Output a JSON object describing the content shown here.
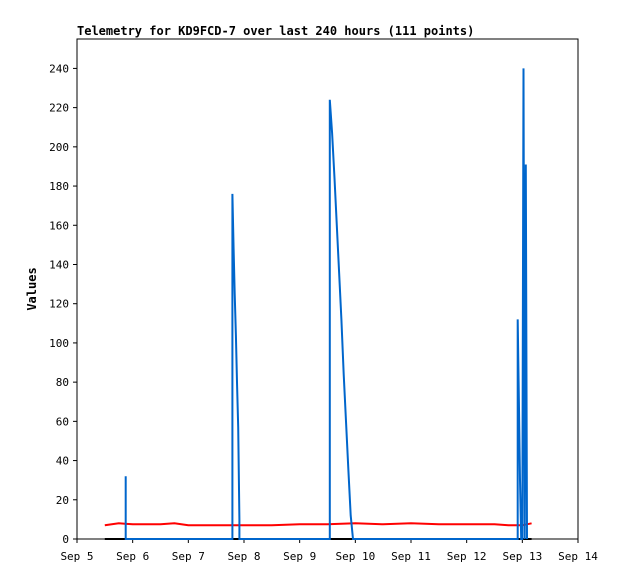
{
  "chart_data": {
    "type": "line",
    "title": "Telemetry for KD9FCD-7 over last 240 hours (111 points)",
    "ylabel": "Values",
    "xlabel": "",
    "x_ticks": [
      "Sep 5",
      "Sep 6",
      "Sep 7",
      "Sep 8",
      "Sep 9",
      "Sep 10",
      "Sep 11",
      "Sep 12",
      "Sep 13",
      "Sep 14"
    ],
    "xlim": [
      "Sep 5",
      "Sep 14"
    ],
    "y_ticks": [
      0,
      20,
      40,
      60,
      80,
      100,
      120,
      140,
      160,
      180,
      200,
      220,
      240
    ],
    "ylim": [
      0,
      255
    ],
    "grid": false,
    "legend": "none",
    "series": [
      {
        "color": "#ff0000",
        "x": [
          "Sep 5 12:00",
          "Sep 5 18:00",
          "Sep 6 00:00",
          "Sep 6 12:00",
          "Sep 6 18:00",
          "Sep 7 00:00",
          "Sep 7 12:00",
          "Sep 8 00:00",
          "Sep 8 12:00",
          "Sep 9 00:00",
          "Sep 9 12:00",
          "Sep 10 00:00",
          "Sep 10 12:00",
          "Sep 11 00:00",
          "Sep 11 12:00",
          "Sep 12 00:00",
          "Sep 12 06:00",
          "Sep 12 12:00",
          "Sep 12 18:00",
          "Sep 13 00:00",
          "Sep 13 04:00"
        ],
        "y": [
          7,
          8,
          7.5,
          7.5,
          8,
          7,
          7,
          7,
          7,
          7.5,
          7.5,
          8,
          7.5,
          8,
          7.5,
          7.5,
          7.5,
          7.5,
          7,
          7,
          8
        ]
      },
      {
        "color": "#000000",
        "x": [
          "Sep 5 12:00",
          "Sep 13 04:00"
        ],
        "y": [
          0,
          0
        ]
      },
      {
        "color": "#0066cc",
        "x": [
          "Sep 5 21:00",
          "Sep 5 21:00",
          "Sep 5 21:00",
          "Sep 7 19:00",
          "Sep 7 19:00",
          "Sep 7 19:30",
          "Sep 7 20:00",
          "Sep 7 20:30",
          "Sep 7 21:00",
          "Sep 7 21:30",
          "Sep 7 22:00",
          "Sep 7 22:00",
          "Sep 9 13:00",
          "Sep 9 13:00",
          "Sep 9 14:00",
          "Sep 9 15:00",
          "Sep 9 16:00",
          "Sep 9 17:00",
          "Sep 9 18:00",
          "Sep 9 19:00",
          "Sep 9 20:00",
          "Sep 9 21:00",
          "Sep 9 22:00",
          "Sep 9 23:00",
          "Sep 10 00:00",
          "Sep 10 00:00",
          "Sep 12 22:00",
          "Sep 12 22:00",
          "Sep 12 22:30",
          "Sep 12 23:00",
          "Sep 12 23:30",
          "Sep 13 00:00",
          "Sep 13 00:30",
          "Sep 13 01:00",
          "Sep 13 01:30",
          "Sep 13 02:00",
          "Sep 13 02:00"
        ],
        "y": [
          0,
          32,
          0,
          0,
          176,
          148,
          125,
          104,
          80,
          57,
          10,
          0,
          0,
          224,
          207,
          184,
          160,
          136,
          112,
          84,
          59,
          35,
          12,
          0,
          0,
          0,
          0,
          112,
          70,
          30,
          0,
          0,
          240,
          0,
          191,
          0,
          0
        ]
      }
    ]
  }
}
